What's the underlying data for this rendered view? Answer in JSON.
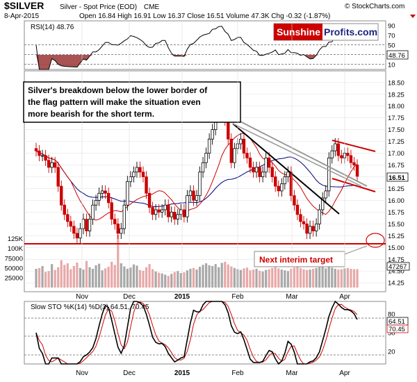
{
  "header": {
    "symbol": "$SILVER",
    "description": "Silver - Spot Price (EOD)",
    "exchange": "CME",
    "date": "8-Apr-2015",
    "quote": "Open 16.84  High 16.91  Low 16.37  Close 16.51  Volume 47.3K  Chg -0.32 (-1.87%)",
    "watermark": "© StockCharts.com"
  },
  "logo": {
    "part1": "Sunshine",
    "part2": "Profits.com"
  },
  "rsi": {
    "label": "RSI(14) 48.76",
    "value_box": "48.76",
    "ticks": [
      "90",
      "70",
      "50",
      "30",
      "10"
    ]
  },
  "price": {
    "label": "Silver - Spot Price",
    "last_box": "16.51",
    "ticks": [
      "18.50",
      "18.25",
      "18.00",
      "17.75",
      "17.50",
      "17.25",
      "17.00",
      "16.75",
      "16.50",
      "16.25",
      "16.00",
      "15.75",
      "15.50",
      "15.25",
      "15.00",
      "14.75",
      "14.50",
      "14.25"
    ]
  },
  "annotation": {
    "text_lines": [
      "Silver's breakdown below the lower border of",
      "the flag pattern will make the situation even",
      "more bearish for the short term."
    ],
    "target_label": "Next interim target"
  },
  "volume": {
    "ticks": [
      "125K",
      "100K",
      "75000",
      "50000",
      "25000"
    ],
    "value_box": "47267"
  },
  "stochastic": {
    "label": "Slow STO %K(14) %D(3) 64.51, 70.45",
    "k_box": "64.51",
    "d_box": "70.45",
    "ticks": [
      "80",
      "50",
      "20"
    ]
  },
  "x_labels": [
    "Nov",
    "Dec",
    "2015",
    "Feb",
    "Mar",
    "Apr"
  ],
  "colors": {
    "up": "#000000",
    "down": "#cc0000",
    "sma50": "#000080",
    "sma20": "#cc0000",
    "line_red": "#cc0000"
  },
  "chart_data": {
    "type": "candlestick",
    "title": "$SILVER Silver - Spot Price (EOD) CME",
    "series": [
      {
        "name": "Close",
        "values": [
          17.05,
          16.95,
          16.95,
          16.85,
          16.7,
          16.8,
          16.7,
          16.3,
          15.9,
          15.7,
          15.55,
          15.45,
          15.3,
          15.2,
          15.4,
          15.6,
          15.35,
          15.6,
          15.9,
          16.0,
          16.15,
          16.2,
          16.15,
          15.95,
          15.6,
          15.5,
          15.3,
          15.4,
          15.9,
          16.4,
          16.5,
          16.6,
          16.7,
          16.6,
          16.5,
          16.15,
          15.85,
          15.7,
          15.8,
          15.75,
          15.8,
          15.9,
          15.65,
          15.75,
          15.6,
          15.7,
          15.8,
          15.65,
          16.1,
          16.2,
          16.0,
          16.1,
          16.6,
          16.8,
          17.0,
          17.3,
          17.5,
          17.8,
          17.9,
          18.1,
          17.7,
          17.3,
          16.8,
          17.1,
          17.2,
          17.3,
          17.0,
          16.9,
          16.7,
          16.6,
          16.7,
          16.5,
          16.6,
          16.9,
          16.7,
          16.5,
          16.3,
          16.2,
          16.35,
          16.5,
          16.6,
          16.1,
          15.9,
          15.7,
          15.55,
          15.5,
          15.3,
          15.45,
          15.35,
          15.5,
          15.8,
          16.05,
          16.2,
          16.9,
          17.05,
          17.2,
          16.95,
          16.9,
          17.0,
          16.95,
          16.8,
          16.75,
          16.51
        ]
      },
      {
        "name": "Volume",
        "values": [
          48000,
          50000,
          55000,
          40000,
          42000,
          60000,
          45000,
          52000,
          70000,
          58000,
          62000,
          47000,
          55000,
          64000,
          50000,
          46000,
          68000,
          52000,
          48000,
          57000,
          61000,
          44000,
          49000,
          53000,
          66000,
          58000,
          135000,
          62000,
          54000,
          48000,
          51000,
          59000,
          56000,
          45000,
          43000,
          52000,
          60000,
          47000,
          41000,
          38000,
          36000,
          33000,
          30000,
          35000,
          40000,
          42000,
          37000,
          39000,
          44000,
          48000,
          50000,
          46000,
          53000,
          58000,
          62000,
          57000,
          55000,
          60000,
          52000,
          63000,
          66000,
          59000,
          54000,
          50000,
          47000,
          45000,
          49000,
          51000,
          44000,
          46000,
          48000,
          43000,
          41000,
          45000,
          47000,
          50000,
          52000,
          49000,
          46000,
          44000,
          42000,
          48000,
          51000,
          53000,
          50000,
          47000,
          45000,
          46000,
          48000,
          50000,
          52000,
          54000,
          49000,
          55000,
          51000,
          48000,
          46000,
          47000,
          49000,
          50000,
          48000,
          47000,
          47267
        ]
      }
    ],
    "indicators": {
      "rsi14": 48.76,
      "slow_sto_k": 64.51,
      "slow_sto_d": 70.45
    },
    "ylim_price": [
      14.15,
      18.6
    ],
    "ylim_rsi": [
      0,
      100
    ],
    "ylim_stochastic": [
      0,
      100
    ],
    "x_axis": [
      "Nov",
      "Dec",
      "2015",
      "Feb",
      "Mar",
      "Apr"
    ],
    "grid": true
  }
}
